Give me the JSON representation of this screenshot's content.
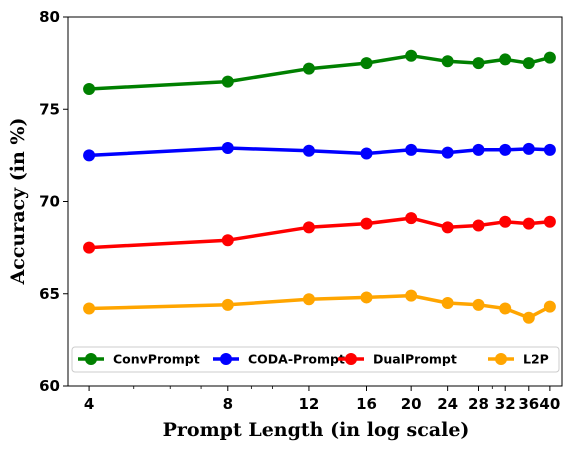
{
  "chart_data": {
    "type": "line",
    "xlabel": "Prompt Length (in log scale)",
    "ylabel": "Accuracy (in %)",
    "x_scale": "log",
    "x": [
      4,
      8,
      12,
      16,
      20,
      24,
      28,
      32,
      36,
      40
    ],
    "x_tick_labels": [
      "4",
      "8",
      "12",
      "16",
      "20",
      "24",
      "28",
      "32",
      "36",
      "40"
    ],
    "ylim": [
      60,
      80
    ],
    "y_ticks": [
      60,
      65,
      70,
      75,
      80
    ],
    "y_tick_labels": [
      "60",
      "65",
      "70",
      "75",
      "80"
    ],
    "grid": false,
    "legend_position": "lower-center",
    "series": [
      {
        "name": "ConvPrompt",
        "color": "#008000",
        "values": [
          76.1,
          76.5,
          77.2,
          77.5,
          77.9,
          77.6,
          77.5,
          77.7,
          77.5,
          77.8
        ]
      },
      {
        "name": "CODA-Prompt",
        "color": "#0000ff",
        "values": [
          72.5,
          72.9,
          72.75,
          72.6,
          72.8,
          72.65,
          72.8,
          72.8,
          72.85,
          72.8
        ]
      },
      {
        "name": "DualPrompt",
        "color": "#ff0000",
        "values": [
          67.5,
          67.9,
          68.6,
          68.8,
          69.1,
          68.6,
          68.7,
          68.9,
          68.8,
          68.9
        ]
      },
      {
        "name": "L2P",
        "color": "#ffa500",
        "values": [
          64.2,
          64.4,
          64.7,
          64.8,
          64.9,
          64.5,
          64.4,
          64.2,
          63.7,
          64.3
        ]
      }
    ]
  }
}
